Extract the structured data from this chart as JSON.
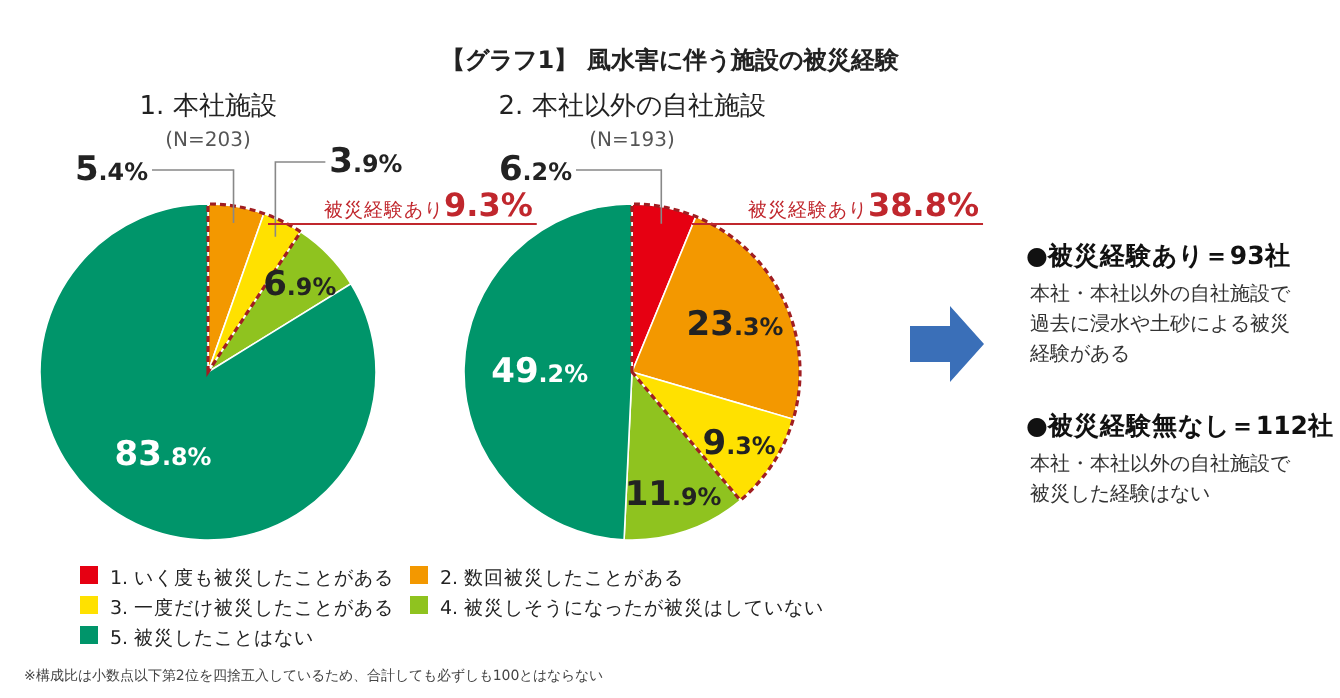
{
  "chart_data": [
    {
      "type": "pie",
      "title": "1. 本社施設",
      "subtitle": "(N=203)",
      "categories": [
        "1. いく度も被災したことがある",
        "2. 数回被災したことがある",
        "3. 一度だけ被災したことがある",
        "4. 被災しそうになったが被災はしていない",
        "5. 被災したことはない"
      ],
      "values": [
        0,
        5.4,
        3.9,
        6.9,
        83.8
      ],
      "colors": [
        "#e60012",
        "#f39800",
        "#ffe100",
        "#8fc31f",
        "#00956a"
      ],
      "value_labels": [
        null,
        "5.4%",
        "3.9%",
        "6.9%",
        "83.8%"
      ],
      "legend": "bottom",
      "annotations": [
        "被災経験あり**9.3%**",
        "【グラフ1】 風水害に伴う施設の被災経験",
        "※構成比は小数点以下第2位を四捨五入しているため、合計しても必ずしも100とはならない"
      ]
    },
    {
      "type": "pie",
      "title": "2. 本社以外の自社施設",
      "subtitle": "(N=193)",
      "values": [
        6.2,
        23.3,
        9.3,
        11.9,
        49.2
      ],
      "colors": [
        "#e60012",
        "#f39800",
        "#ffe100",
        "#8fc31f",
        "#00956a"
      ],
      "value_labels": [
        "6.2%",
        "23.3%",
        "9.3%",
        "11.9%",
        "49.2%"
      ],
      "annotations": [
        "被災経験あり**38.8%**"
      ]
    },
    {
      "type": "other",
      "annotations": [
        "●被災経験あり＝93社",
        "本社・本社以外の自社施設で過去に浸水や土砂による被災経験がある",
        "●被災経験無なし＝112社",
        "本社・本社以外の自社施設で被災した経験はない"
      ]
    }
  ]
}
